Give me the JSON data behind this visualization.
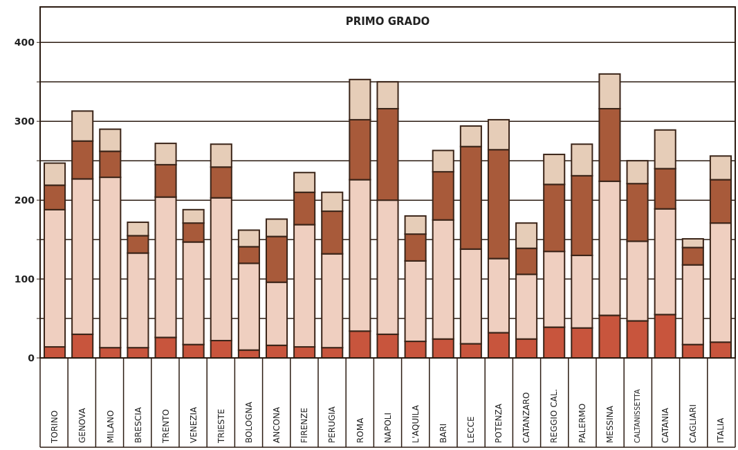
{
  "chart_data": {
    "type": "bar",
    "title": "PRIMO GRADO",
    "stacked": true,
    "categories": [
      "TORINO",
      "GENOVA",
      "MILANO",
      "BRESCIA",
      "TRENTO",
      "VENEZIA",
      "TRIESTE",
      "BOLOGNA",
      "ANCONA",
      "FIRENZE",
      "PERUGIA",
      "ROMA",
      "NAPOLI",
      "L'AQUILA",
      "BARI",
      "LECCE",
      "POTENZA",
      "CATANZARO",
      "REGGIO CAL.",
      "PALERMO",
      "MESSINA",
      "CALTANISSETTA",
      "CATANIA",
      "CAGLIARI",
      "ITALIA"
    ],
    "series": [
      {
        "color": "#c8553d",
        "values": [
          14,
          30,
          13,
          13,
          26,
          17,
          22,
          10,
          16,
          14,
          13,
          34,
          30,
          21,
          24,
          18,
          32,
          24,
          39,
          38,
          54,
          47,
          55,
          17,
          20
        ]
      },
      {
        "color": "#efcfc0",
        "values": [
          174,
          197,
          216,
          120,
          178,
          130,
          181,
          110,
          80,
          155,
          119,
          192,
          170,
          102,
          151,
          120,
          94,
          82,
          96,
          92,
          170,
          101,
          134,
          101,
          151
        ]
      },
      {
        "color": "#a85a3a",
        "values": [
          31,
          48,
          33,
          22,
          41,
          24,
          39,
          21,
          58,
          41,
          54,
          76,
          116,
          34,
          61,
          130,
          138,
          33,
          85,
          101,
          92,
          73,
          51,
          22,
          55
        ]
      },
      {
        "color": "#e6cdb8",
        "values": [
          28,
          38,
          28,
          17,
          27,
          17,
          29,
          21,
          22,
          25,
          24,
          51,
          34,
          23,
          27,
          26,
          38,
          32,
          38,
          40,
          44,
          29,
          49,
          11,
          30
        ]
      }
    ],
    "ylim": [
      0,
      445
    ],
    "yticks": [
      0,
      {
        "value": 50,
        "label": null
      },
      100,
      {
        "value": 150,
        "label": null
      },
      200,
      {
        "value": 250,
        "label": null
      },
      300,
      {
        "value": 350,
        "label": null
      },
      400
    ],
    "grid": "y"
  }
}
